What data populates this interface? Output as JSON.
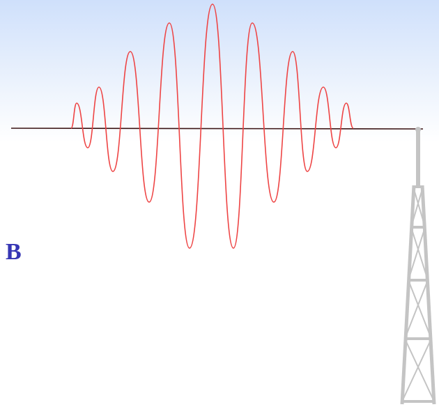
{
  "label": "B"
}
